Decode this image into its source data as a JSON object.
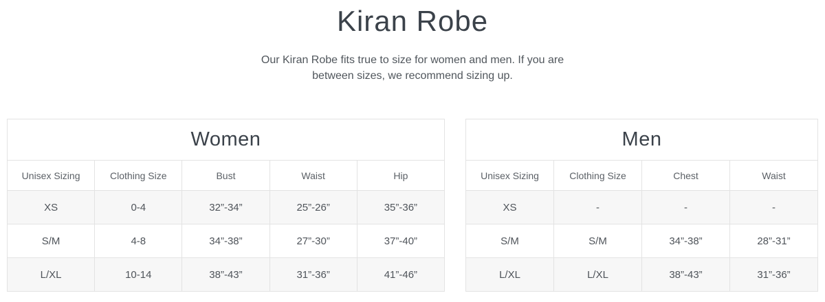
{
  "page": {
    "title": "Kiran Robe",
    "subtitle_lines": [
      "Our Kiran Robe fits true to size for women and men. If you are",
      "between sizes, we recommend sizing up."
    ]
  },
  "colors": {
    "title_text": "#3b424a",
    "body_text": "#50565c",
    "cell_text": "#4f545a",
    "table_border": "#e3e3e3",
    "row_stripe": "#f7f7f7",
    "background": "#ffffff"
  },
  "tables": [
    {
      "title": "Women",
      "headers": [
        "Unisex Sizing",
        "Clothing Size",
        "Bust",
        "Waist",
        "Hip"
      ],
      "rows": [
        [
          "XS",
          "0-4",
          "32”-34”",
          "25”-26”",
          "35”-36”"
        ],
        [
          "S/M",
          "4-8",
          "34”-38”",
          "27”-30”",
          "37”-40”"
        ],
        [
          "L/XL",
          "10-14",
          "38”-43”",
          "31”-36”",
          "41”-46”"
        ]
      ]
    },
    {
      "title": "Men",
      "headers": [
        "Unisex Sizing",
        "Clothing Size",
        "Chest",
        "Waist"
      ],
      "rows": [
        [
          "XS",
          "-",
          "-",
          "-"
        ],
        [
          "S/M",
          "S/M",
          "34”-38”",
          "28”-31”"
        ],
        [
          "L/XL",
          "L/XL",
          "38”-43”",
          "31”-36”"
        ]
      ]
    }
  ]
}
